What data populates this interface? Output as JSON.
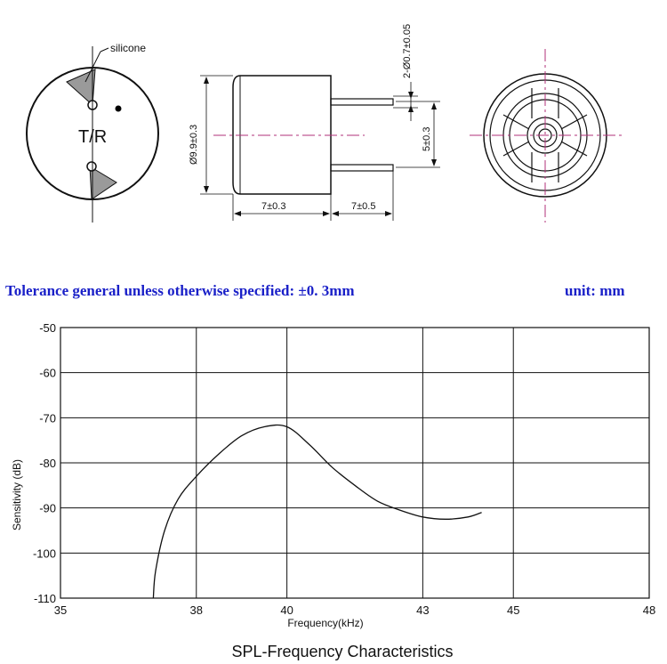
{
  "drawing": {
    "silicone_label": "silicone",
    "tr_label": "T/R",
    "dim_diameter": "Ø9.9±0.3",
    "dim_body_length": "7±0.3",
    "dim_pin_length": "7±0.5",
    "dim_pin_spacing": "5±0.3",
    "dim_pin_diameter": "2-Ø0.7±0.05"
  },
  "tolerance_note": "Tolerance general unless otherwise specified: ±0. 3mm",
  "unit_note": "unit: mm",
  "chart_data": {
    "type": "line",
    "title": "SPL-Frequency Characteristics",
    "xlabel": "Frequency(kHz)",
    "ylabel": "Sensitivity (dB)",
    "xlim": [
      35,
      48
    ],
    "ylim": [
      -110,
      -50
    ],
    "x_ticks": [
      35,
      38,
      40,
      43,
      45,
      48
    ],
    "y_ticks": [
      -50,
      -60,
      -70,
      -80,
      -90,
      -100,
      -110
    ],
    "grid": true,
    "series": [
      {
        "x": [
          37.05,
          37.1,
          37.3,
          37.6,
          38.0,
          38.5,
          39.0,
          39.5,
          40.0,
          40.5,
          41.0,
          41.5,
          42.0,
          42.5,
          43.0,
          43.5,
          44.0,
          44.3
        ],
        "values": [
          -110,
          -104,
          -95,
          -88,
          -83,
          -78,
          -74,
          -72,
          -72,
          -76,
          -81,
          -85,
          -88.5,
          -90.5,
          -92,
          -92.5,
          -92,
          -91
        ]
      }
    ]
  }
}
